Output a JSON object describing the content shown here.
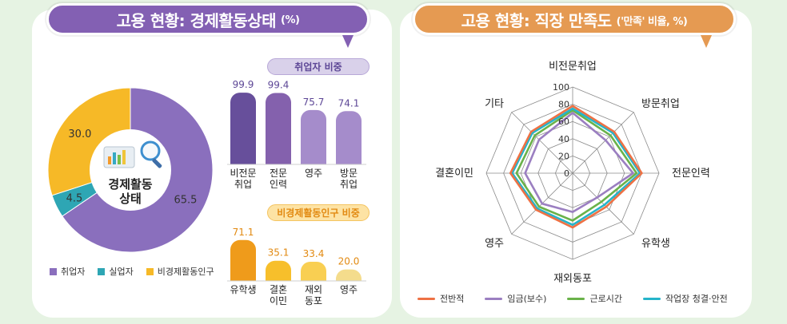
{
  "left_panel": {
    "title": "고용 현황: 경제활동상태",
    "title_unit": "(%)",
    "donut": {
      "center_label_line1": "경제활동",
      "center_label_line2": "상태"
    },
    "employed_pill": "취업자 비중",
    "inactive_pill": "비경제활동인구 비중"
  },
  "right_panel": {
    "title": "고용 현황: 직장 만족도",
    "title_unit": "('만족' 비율, %)"
  },
  "colors": {
    "employed": "#8a6fbd",
    "unemployed": "#2ea6b4",
    "inactive": "#f6b927",
    "bar_dark_purple": "#674f9b",
    "bar_mid_purple": "#8461ad",
    "bar_light_purple": "#a58ccb",
    "bar_orange": "#ef9b1b",
    "bar_yellow": "#f7bf2b",
    "bar_light_yellow": "#f9cf52",
    "bar_pale_yellow": "#f4dc8c",
    "radar_overall": "#ee7144",
    "radar_wage": "#9b7fc1",
    "radar_hours": "#6ab24a",
    "radar_safety": "#25b4ca"
  },
  "chart_data": [
    {
      "type": "pie",
      "labels": [
        "취업자",
        "실업자",
        "비경제활동인구"
      ],
      "values": [
        65.5,
        4.5,
        30.0
      ],
      "value_labels": [
        "65.5",
        "4.5",
        "30.0"
      ],
      "legend": "bottom"
    },
    {
      "type": "bar",
      "categories": [
        "비전문\n취업",
        "전문\n인력",
        "영주",
        "방문\n취업"
      ],
      "values": [
        99.9,
        99.4,
        75.7,
        74.1
      ],
      "value_labels": [
        "99.9",
        "99.4",
        "75.7",
        "74.1"
      ],
      "title": "취업자 비중"
    },
    {
      "type": "bar",
      "categories": [
        "유학생",
        "결혼\n이민",
        "재외\n동포",
        "영주"
      ],
      "values": [
        71.1,
        35.1,
        33.4,
        20.0
      ],
      "value_labels": [
        "71.1",
        "35.1",
        "33.4",
        "20.0"
      ],
      "title": "비경제활동인구 비중"
    },
    {
      "type": "radar",
      "axes": [
        "비전문취업",
        "방문취업",
        "전문인력",
        "유학생",
        "재외동포",
        "영주",
        "결혼이민",
        "기타"
      ],
      "rlim": [
        0,
        100
      ],
      "ticks": [
        "0",
        "20",
        "40",
        "60",
        "80",
        "100"
      ],
      "legend": "bottom",
      "series": [
        {
          "name": "전반적",
          "values": [
            78,
            68,
            80,
            55,
            63,
            60,
            72,
            68
          ]
        },
        {
          "name": "임금(보수)",
          "values": [
            70,
            54,
            70,
            40,
            45,
            50,
            55,
            55
          ]
        },
        {
          "name": "근로시간",
          "values": [
            73,
            62,
            74,
            47,
            55,
            55,
            65,
            62
          ]
        },
        {
          "name": "작업장 청결·안전",
          "values": [
            75,
            66,
            78,
            52,
            60,
            58,
            70,
            66
          ]
        }
      ]
    }
  ]
}
